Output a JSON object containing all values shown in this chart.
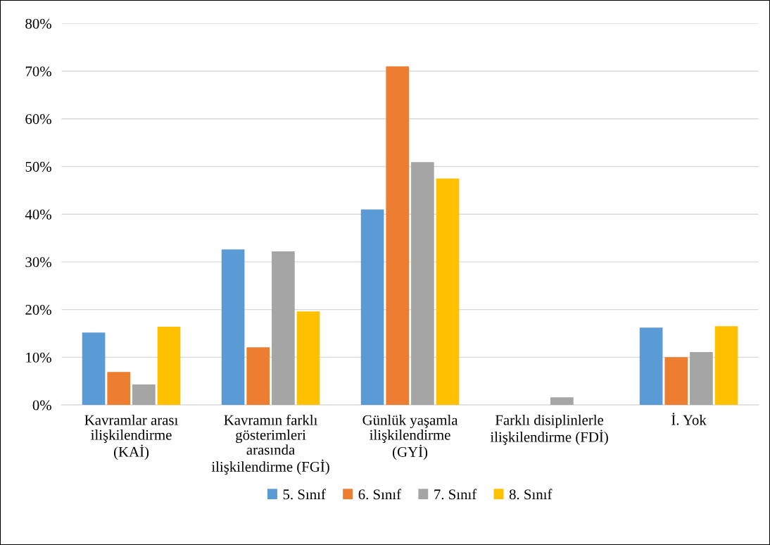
{
  "chart_data": {
    "type": "bar",
    "categories": [
      "Kavramlar arası\nilişkilendirme\n(KAİ)",
      "Kavramın farklı\ngösterimleri\narasında\nilişkilendirme (FGİ)",
      "Günlük yaşamla\nilişkilendirme\n(GYİ)",
      "Farklı disiplinlerle\nilişkilendirme (FDİ)",
      "İ. Yok"
    ],
    "series": [
      {
        "name": "5. Sınıf",
        "color": "#5b9bd5",
        "values": [
          15.2,
          32.6,
          41.0,
          0,
          16.2
        ]
      },
      {
        "name": "6. Sınıf",
        "color": "#ed7d31",
        "values": [
          6.9,
          12.1,
          71.0,
          0,
          10.0
        ]
      },
      {
        "name": "7. Sınıf",
        "color": "#a5a5a5",
        "values": [
          4.3,
          32.2,
          50.9,
          1.6,
          11.1
        ]
      },
      {
        "name": "8. Sınıf",
        "color": "#ffc000",
        "values": [
          16.4,
          19.6,
          47.5,
          0,
          16.5
        ]
      }
    ],
    "ylim": [
      0,
      80
    ],
    "yticks": [
      {
        "value": 0,
        "label": "0%"
      },
      {
        "value": 10,
        "label": "10%"
      },
      {
        "value": 20,
        "label": "20%"
      },
      {
        "value": 30,
        "label": "30%"
      },
      {
        "value": 40,
        "label": "40%"
      },
      {
        "value": 50,
        "label": "50%"
      },
      {
        "value": 60,
        "label": "60%"
      },
      {
        "value": 70,
        "label": "70%"
      },
      {
        "value": 80,
        "label": "80%"
      }
    ],
    "grid": "y",
    "legend": "bottom"
  }
}
